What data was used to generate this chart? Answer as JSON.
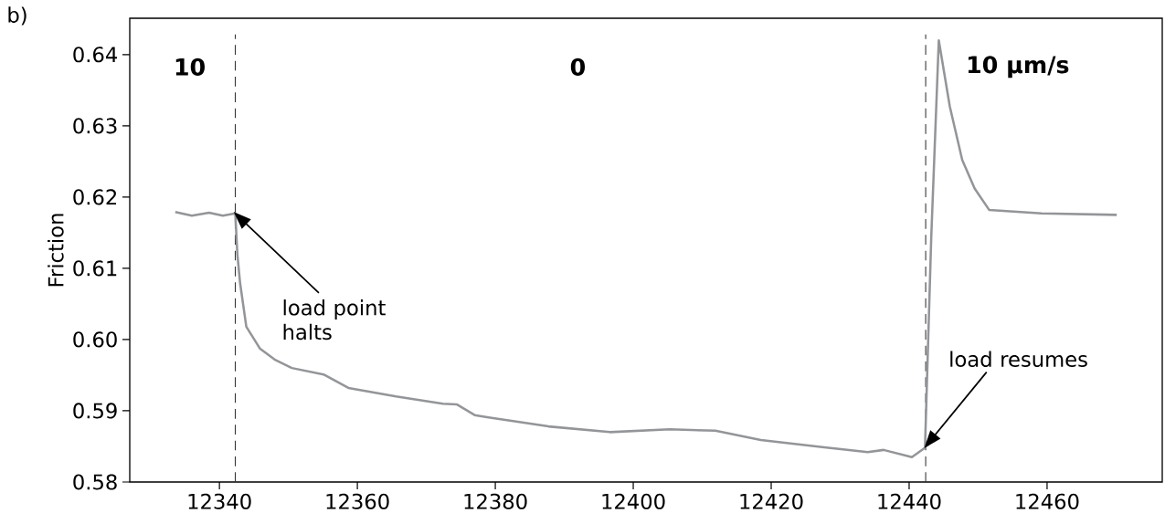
{
  "chart_data": {
    "type": "line",
    "ylabel": "Friction",
    "xlim": [
      12327.0,
      12476.7
    ],
    "ylim": [
      0.58,
      0.6451
    ],
    "xticks": [
      12340,
      12360,
      12380,
      12400,
      12420,
      12440,
      12460
    ],
    "yticks": [
      0.58,
      0.59,
      {
        "value": 0.6,
        "label": "0.60"
      },
      0.61,
      0.62,
      0.63,
      0.64
    ],
    "series": [
      {
        "color": "#939598",
        "x": [
          12333.6,
          12336.0,
          12338.5,
          12340.5,
          12342.3,
          12342.6,
          12343.0,
          12343.9,
          12345.9,
          12348.0,
          12350.5,
          12355.1,
          12358.7,
          12365.6,
          12372.4,
          12374.4,
          12377.0,
          12378.8,
          12387.7,
          12396.6,
          12405.3,
          12411.9,
          12418.5,
          12427.4,
          12434.0,
          12436.3,
          12440.4,
          12442.3,
          12443.2,
          12444.3,
          12445.9,
          12447.7,
          12449.5,
          12451.6,
          12459.2,
          12470.1
        ],
        "values": [
          0.6179,
          0.6174,
          0.6178,
          0.6174,
          0.6177,
          0.612,
          0.6079,
          0.6018,
          0.5987,
          0.5972,
          0.596,
          0.5951,
          0.5932,
          0.592,
          0.591,
          0.5909,
          0.5894,
          0.5891,
          0.5878,
          0.587,
          0.5874,
          0.5872,
          0.5859,
          0.5849,
          0.5842,
          0.5845,
          0.5835,
          0.5848,
          0.6142,
          0.642,
          0.6327,
          0.6252,
          0.6212,
          0.6182,
          0.6177,
          0.6175
        ]
      }
    ],
    "ref_lines": [
      {
        "axis": "x",
        "value": 12342.3,
        "color": "#333333",
        "line_style": "dashed"
      },
      {
        "axis": "x",
        "value": 12442.4,
        "color": "#333333",
        "line_style": "dashed"
      }
    ],
    "annotations": [
      "b)",
      "10",
      "0",
      "10 µm/s",
      {
        "text": "load point halts",
        "x": 12342.3,
        "y": 0.6177
      },
      {
        "text": "load resumes",
        "x": 12442.4,
        "y": 0.585
      }
    ]
  }
}
